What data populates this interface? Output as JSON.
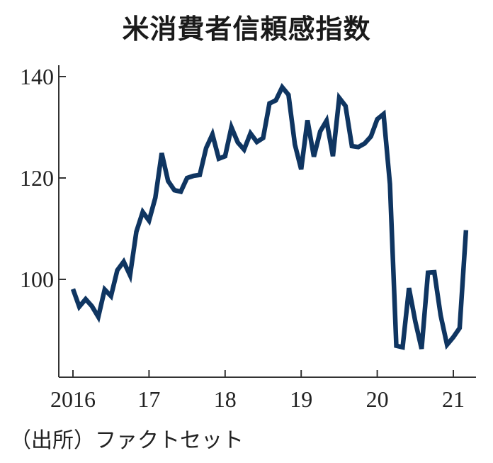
{
  "chart_data": {
    "type": "line",
    "title": "米消費者信頼感指数",
    "xlabel": "",
    "ylabel": "",
    "xlim": [
      2016.0,
      2021.25
    ],
    "ylim": [
      82,
      141
    ],
    "yticks": [
      100,
      120,
      140
    ],
    "xticks": [
      {
        "value": 2016,
        "label": "2016"
      },
      {
        "value": 2017,
        "label": "17"
      },
      {
        "value": 2018,
        "label": "18"
      },
      {
        "value": 2019,
        "label": "19"
      },
      {
        "value": 2020,
        "label": "20"
      },
      {
        "value": 2021,
        "label": "21"
      }
    ],
    "grid": false,
    "color": "#0f3561",
    "series": [
      {
        "name": "",
        "x": [
          2016.0,
          2016.083,
          2016.167,
          2016.25,
          2016.333,
          2016.417,
          2016.5,
          2016.583,
          2016.667,
          2016.75,
          2016.833,
          2016.917,
          2017.0,
          2017.083,
          2017.167,
          2017.25,
          2017.333,
          2017.417,
          2017.5,
          2017.583,
          2017.667,
          2017.75,
          2017.833,
          2017.917,
          2018.0,
          2018.083,
          2018.167,
          2018.25,
          2018.333,
          2018.417,
          2018.5,
          2018.583,
          2018.667,
          2018.75,
          2018.833,
          2018.917,
          2019.0,
          2019.083,
          2019.167,
          2019.25,
          2019.333,
          2019.417,
          2019.5,
          2019.583,
          2019.667,
          2019.75,
          2019.833,
          2019.917,
          2020.0,
          2020.083,
          2020.167,
          2020.25,
          2020.333,
          2020.417,
          2020.5,
          2020.583,
          2020.667,
          2020.75,
          2020.833,
          2020.917,
          2021.0,
          2021.083,
          2021.167
        ],
        "values": [
          98.1,
          94.6,
          96.1,
          94.7,
          92.6,
          98.0,
          96.7,
          101.8,
          103.5,
          100.8,
          109.4,
          113.3,
          111.6,
          116.1,
          124.9,
          119.4,
          117.6,
          117.3,
          120.0,
          120.4,
          120.6,
          125.9,
          128.6,
          123.8,
          124.3,
          130.0,
          127.0,
          125.6,
          128.8,
          127.1,
          127.9,
          134.7,
          135.3,
          137.9,
          136.4,
          126.6,
          121.7,
          131.4,
          124.2,
          129.2,
          131.3,
          124.3,
          135.8,
          134.2,
          126.3,
          126.1,
          126.8,
          128.2,
          131.6,
          132.6,
          118.8,
          86.9,
          86.6,
          98.3,
          91.7,
          86.3,
          101.3,
          101.4,
          92.9,
          87.1,
          88.6,
          90.4,
          109.7
        ]
      }
    ]
  },
  "source": "（出所）ファクトセット"
}
